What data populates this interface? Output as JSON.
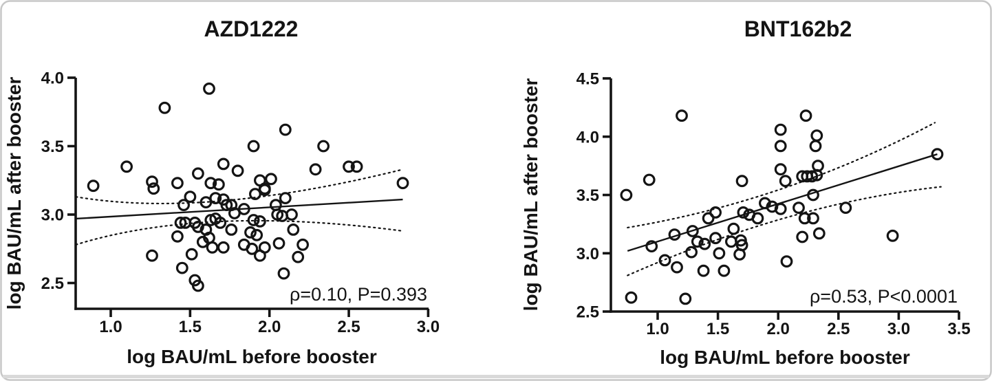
{
  "figure": {
    "background": "#ffffff",
    "border_color": "#c7c7c7",
    "bottom_band_color": "#d9d9d9",
    "ink_color": "#141414"
  },
  "chart_data": [
    {
      "type": "scatter",
      "title": "AZD1222",
      "xlabel": "log BAU/mL before booster",
      "ylabel": "log BAU/mL after booster",
      "annotation": "ρ=0.10, P=0.393",
      "xlim": [
        0.78,
        3.0
      ],
      "ylim": [
        2.31,
        4.0
      ],
      "grid": false,
      "legend": "none",
      "marker": "open-circle",
      "xticks": {
        "values": [
          1.0,
          1.5,
          2.0,
          2.5,
          3.0
        ],
        "labels": [
          "1.0",
          "1.5",
          "2.0",
          "2.5",
          "3.0"
        ]
      },
      "yticks": {
        "values": [
          2.5,
          3.0,
          3.5,
          4.0
        ],
        "labels": [
          "2.5",
          "3.0",
          "3.5",
          "4.0"
        ]
      },
      "fit_line": [
        [
          0.78,
          2.97
        ],
        [
          2.84,
          3.11
        ]
      ],
      "ci_upper": [
        [
          0.78,
          3.13
        ],
        [
          1.7,
          3.1
        ],
        [
          2.84,
          3.33
        ]
      ],
      "ci_lower": [
        [
          0.78,
          2.78
        ],
        [
          1.7,
          2.95
        ],
        [
          2.84,
          2.88
        ]
      ],
      "points": [
        [
          0.89,
          3.21
        ],
        [
          1.1,
          3.35
        ],
        [
          1.26,
          3.24
        ],
        [
          1.27,
          3.19
        ],
        [
          1.34,
          3.78
        ],
        [
          1.42,
          3.23
        ],
        [
          1.55,
          3.3
        ],
        [
          1.62,
          3.92
        ],
        [
          1.63,
          3.23
        ],
        [
          1.68,
          3.22
        ],
        [
          1.71,
          3.37
        ],
        [
          1.8,
          3.32
        ],
        [
          1.9,
          3.5
        ],
        [
          1.94,
          3.25
        ],
        [
          1.97,
          3.19
        ],
        [
          2.01,
          3.26
        ],
        [
          2.1,
          3.62
        ],
        [
          2.29,
          3.33
        ],
        [
          2.34,
          3.5
        ],
        [
          2.5,
          3.35
        ],
        [
          2.55,
          3.35
        ],
        [
          2.84,
          3.23
        ],
        [
          1.46,
          3.07
        ],
        [
          1.5,
          3.13
        ],
        [
          1.6,
          3.09
        ],
        [
          1.66,
          3.12
        ],
        [
          1.71,
          3.11
        ],
        [
          1.73,
          3.07
        ],
        [
          1.91,
          3.15
        ],
        [
          1.97,
          3.18
        ],
        [
          2.1,
          3.12
        ],
        [
          1.84,
          3.04
        ],
        [
          2.04,
          3.07
        ],
        [
          2.05,
          3.0
        ],
        [
          2.08,
          2.99
        ],
        [
          2.14,
          3.0
        ],
        [
          1.76,
          3.07
        ],
        [
          1.78,
          3.01
        ],
        [
          1.44,
          2.94
        ],
        [
          1.47,
          2.94
        ],
        [
          1.53,
          2.94
        ],
        [
          1.55,
          2.91
        ],
        [
          1.63,
          2.96
        ],
        [
          1.66,
          2.97
        ],
        [
          1.69,
          2.94
        ],
        [
          1.6,
          2.89
        ],
        [
          1.9,
          2.96
        ],
        [
          1.94,
          2.95
        ],
        [
          1.76,
          2.89
        ],
        [
          1.88,
          2.87
        ],
        [
          1.92,
          2.85
        ],
        [
          2.15,
          2.89
        ],
        [
          1.62,
          2.83
        ],
        [
          1.58,
          2.8
        ],
        [
          1.42,
          2.84
        ],
        [
          2.06,
          2.79
        ],
        [
          2.21,
          2.78
        ],
        [
          1.84,
          2.78
        ],
        [
          1.89,
          2.75
        ],
        [
          1.97,
          2.76
        ],
        [
          1.64,
          2.76
        ],
        [
          1.71,
          2.76
        ],
        [
          1.94,
          2.7
        ],
        [
          2.18,
          2.69
        ],
        [
          1.26,
          2.7
        ],
        [
          1.51,
          2.71
        ],
        [
          1.45,
          2.61
        ],
        [
          2.09,
          2.57
        ],
        [
          1.53,
          2.52
        ],
        [
          1.55,
          2.48
        ]
      ]
    },
    {
      "type": "scatter",
      "title": "BNT162b2",
      "xlabel": "log BAU/mL before booster",
      "ylabel": "log BAU/mL after booster",
      "annotation": "ρ=0.53, P<0.0001",
      "xlim": [
        0.61,
        3.5
      ],
      "ylim": [
        2.5,
        4.5
      ],
      "grid": false,
      "legend": "none",
      "marker": "open-circle",
      "xticks": {
        "values": [
          1.0,
          1.5,
          2.0,
          2.5,
          3.0,
          3.5
        ],
        "labels": [
          "1.0",
          "1.5",
          "2.0",
          "2.5",
          "3.0",
          "3.5"
        ]
      },
      "yticks": {
        "values": [
          2.5,
          3.0,
          3.5,
          4.0,
          4.5
        ],
        "labels": [
          "2.5",
          "3.0",
          "3.5",
          "4.0",
          "4.5"
        ]
      },
      "fit_line": [
        [
          0.75,
          3.02
        ],
        [
          3.32,
          3.85
        ]
      ],
      "ci_upper": [
        [
          0.75,
          3.22
        ],
        [
          2.05,
          3.56
        ],
        [
          3.3,
          4.12
        ]
      ],
      "ci_lower": [
        [
          0.75,
          2.81
        ],
        [
          2.08,
          3.31
        ],
        [
          3.35,
          3.57
        ]
      ],
      "points": [
        [
          0.74,
          3.5
        ],
        [
          0.78,
          2.62
        ],
        [
          0.93,
          3.63
        ],
        [
          0.95,
          3.06
        ],
        [
          1.06,
          2.94
        ],
        [
          1.14,
          3.16
        ],
        [
          1.16,
          2.88
        ],
        [
          1.2,
          4.18
        ],
        [
          1.23,
          2.61
        ],
        [
          1.28,
          3.01
        ],
        [
          1.29,
          3.19
        ],
        [
          1.33,
          3.1
        ],
        [
          1.38,
          2.85
        ],
        [
          1.39,
          3.08
        ],
        [
          1.42,
          3.3
        ],
        [
          1.48,
          3.35
        ],
        [
          1.48,
          3.13
        ],
        [
          1.51,
          3.0
        ],
        [
          1.55,
          2.85
        ],
        [
          1.61,
          3.1
        ],
        [
          1.63,
          3.21
        ],
        [
          1.68,
          2.99
        ],
        [
          1.69,
          3.11
        ],
        [
          1.7,
          3.07
        ],
        [
          1.7,
          3.62
        ],
        [
          1.71,
          3.35
        ],
        [
          1.76,
          3.33
        ],
        [
          1.83,
          3.3
        ],
        [
          1.89,
          3.43
        ],
        [
          1.95,
          3.4
        ],
        [
          2.02,
          4.06
        ],
        [
          2.02,
          3.92
        ],
        [
          2.02,
          3.72
        ],
        [
          2.02,
          3.38
        ],
        [
          2.07,
          2.93
        ],
        [
          2.06,
          3.62
        ],
        [
          2.17,
          3.39
        ],
        [
          2.2,
          3.66
        ],
        [
          2.2,
          3.14
        ],
        [
          2.22,
          3.3
        ],
        [
          2.23,
          4.18
        ],
        [
          2.24,
          3.66
        ],
        [
          2.28,
          3.66
        ],
        [
          2.29,
          3.5
        ],
        [
          2.29,
          3.3
        ],
        [
          2.31,
          3.92
        ],
        [
          2.32,
          4.01
        ],
        [
          2.32,
          3.67
        ],
        [
          2.33,
          3.75
        ],
        [
          2.34,
          3.17
        ],
        [
          2.56,
          3.39
        ],
        [
          2.95,
          3.15
        ],
        [
          3.32,
          3.85
        ]
      ]
    }
  ]
}
